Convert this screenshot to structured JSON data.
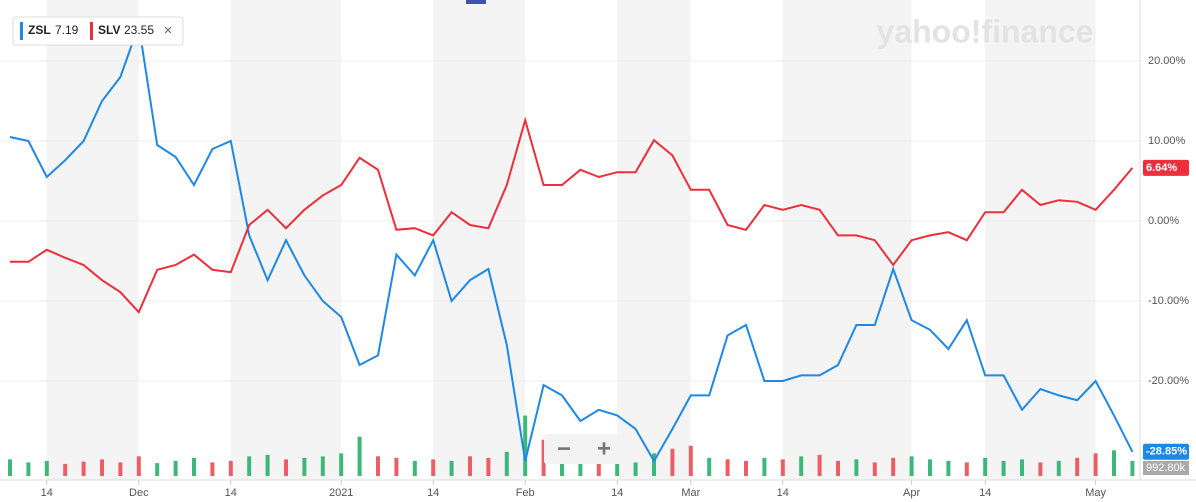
{
  "chart_data": {
    "type": "line",
    "watermark": "yahoo!finance",
    "categories": [
      null,
      null,
      "14",
      null,
      null,
      null,
      null,
      "Dec",
      null,
      null,
      null,
      null,
      "14",
      null,
      null,
      null,
      null,
      null,
      "2021",
      null,
      null,
      null,
      null,
      "14",
      null,
      null,
      null,
      null,
      "Feb",
      null,
      null,
      null,
      null,
      "14",
      null,
      null,
      null,
      "Mar",
      null,
      null,
      null,
      null,
      "14",
      null,
      null,
      null,
      null,
      null,
      null,
      "Apr",
      null,
      null,
      null,
      "14",
      null,
      null,
      null,
      null,
      null,
      "May",
      null,
      null
    ],
    "series": [
      {
        "name": "ZSL",
        "price": "7.19",
        "color": "#1e88e5",
        "last_label": "-28.85%",
        "values": [
          10.5,
          10,
          5.5,
          7.6,
          10,
          15,
          18,
          24.5,
          9.5,
          8,
          4.5,
          9,
          10,
          -1.8,
          -7.4,
          -2.4,
          -6.8,
          -10,
          -12,
          -18,
          -16.8,
          -4.2,
          -6.8,
          -2.4,
          -10,
          -7.4,
          -6,
          -15.5,
          -30,
          -20.5,
          -21.8,
          -25,
          -23.6,
          -24.3,
          -26,
          -30,
          -26,
          -21.8,
          -21.8,
          -14.3,
          -13,
          -20,
          -20,
          -19.3,
          -19.3,
          -18,
          -13,
          -13,
          -6,
          -12.4,
          -13.6,
          -16,
          -12.4,
          -19.3,
          -19.3,
          -23.6,
          -21,
          -21.8,
          -22.4,
          -20,
          -24.3,
          -28.85
        ]
      },
      {
        "name": "SLV",
        "price": "23.55",
        "color": "#ec2f3a",
        "last_label": "6.64%",
        "values": [
          -5.1,
          -5.1,
          -3.6,
          -4.6,
          -5.5,
          -7.4,
          -8.9,
          -11.4,
          -6.1,
          -5.5,
          -4.2,
          -6.1,
          -6.4,
          -0.5,
          1.4,
          -0.9,
          1.4,
          3.2,
          4.5,
          7.9,
          6.4,
          -1.1,
          -0.9,
          -1.8,
          1.1,
          -0.5,
          -0.9,
          4.5,
          12.6,
          4.5,
          4.5,
          6.4,
          5.5,
          6.1,
          6.1,
          10.1,
          8.2,
          3.9,
          3.9,
          -0.5,
          -1.1,
          2,
          1.4,
          2,
          1.4,
          -1.8,
          -1.8,
          -2.4,
          -5.5,
          -2.4,
          -1.8,
          -1.4,
          -2.4,
          1.1,
          1.1,
          3.9,
          2,
          2.6,
          2.4,
          1.4,
          3.9,
          6.64
        ]
      }
    ],
    "volume": {
      "values": [
        1100,
        900,
        1000,
        800,
        950,
        1100,
        900,
        1300,
        850,
        1000,
        1200,
        900,
        1000,
        1300,
        1400,
        1100,
        1200,
        1300,
        1500,
        2600,
        1300,
        1200,
        1000,
        1100,
        1000,
        1300,
        1200,
        1600,
        4000,
        2400,
        1400,
        1200,
        1000,
        1100,
        900,
        1500,
        1800,
        2000,
        1200,
        1100,
        1000,
        1200,
        1100,
        1300,
        1400,
        1000,
        1100,
        900,
        1200,
        1300,
        1100,
        1000,
        900,
        1200,
        1000,
        1100,
        900,
        1000,
        1200,
        1500,
        1700,
        992.8
      ],
      "value_labels": [
        null,
        null,
        null,
        null,
        null,
        null,
        null,
        null,
        null,
        null,
        null,
        null,
        null,
        null,
        null,
        null,
        null,
        null,
        null,
        null,
        null,
        null,
        null,
        null,
        null,
        null,
        null,
        null,
        null,
        null,
        null,
        null,
        null,
        null,
        null,
        null,
        null,
        null,
        null,
        null,
        null,
        null,
        null,
        null,
        null,
        null,
        null,
        null,
        null,
        null,
        null,
        null,
        null,
        null,
        null,
        null,
        null,
        null,
        null,
        null,
        null,
        "992.80k"
      ],
      "ylim": [
        0,
        4500
      ],
      "up_color": "#3cb878",
      "down_color": "#ec5d66"
    },
    "ylim": [
      -30.5,
      27
    ],
    "yticks": [
      {
        "value": 20,
        "label": "20.00%"
      },
      {
        "value": 10,
        "label": "10.00%"
      },
      {
        "value": 0,
        "label": "0.00%"
      },
      {
        "value": -10,
        "label": "-10.00%"
      },
      {
        "value": -20,
        "label": "-20.00%"
      }
    ],
    "grid": true,
    "controls": {
      "zoom_out": "−",
      "zoom_in": "+",
      "close": "×"
    }
  }
}
